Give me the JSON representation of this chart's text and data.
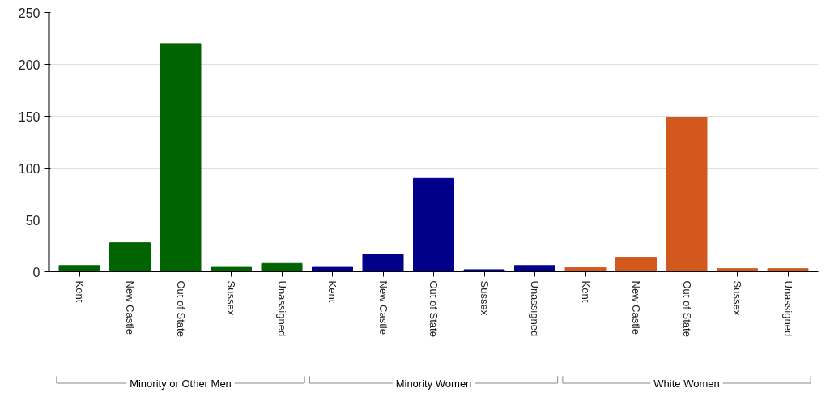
{
  "chart_data": {
    "type": "bar",
    "categories": [
      "Kent",
      "New Castle",
      "Out of State",
      "Sussex",
      "Unassigned",
      "Kent",
      "New Castle",
      "Out of State",
      "Sussex",
      "Unassigned",
      "Kent",
      "New Castle",
      "Out of State",
      "Sussex",
      "Unassigned"
    ],
    "values": [
      6,
      28,
      220,
      5,
      8,
      5,
      17,
      90,
      2,
      6,
      4,
      14,
      149,
      3,
      3
    ],
    "colors": [
      "#006400",
      "#006400",
      "#006400",
      "#006400",
      "#006400",
      "#00008b",
      "#00008b",
      "#00008b",
      "#00008b",
      "#00008b",
      "#d2581e",
      "#d2581e",
      "#d2581e",
      "#d2581e",
      "#d2581e"
    ],
    "ylim": [
      0,
      250
    ],
    "yticks": [
      0,
      50,
      100,
      150,
      200,
      250
    ],
    "grid": "y",
    "annotations": [
      "Minority or Other Men",
      "Minority Women",
      "White Women"
    ]
  }
}
